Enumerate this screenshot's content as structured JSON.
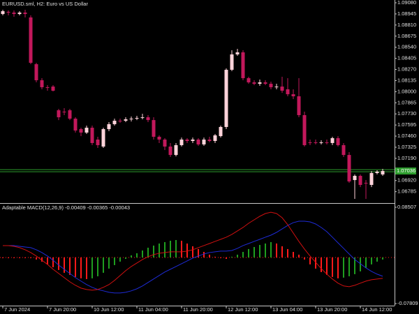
{
  "chart_data": [
    {
      "type": "candlestick",
      "title": "EURUSD.sml, H2:  Euro vs US Dollar",
      "categories": [
        "7 Jun 2024",
        null,
        null,
        null,
        null,
        null,
        null,
        null,
        "7 Jun 20:00",
        null,
        null,
        null,
        null,
        null,
        null,
        null,
        "10 Jun 12:00",
        null,
        null,
        null,
        null,
        null,
        null,
        null,
        "11 Jun 04:00",
        null,
        null,
        null,
        null,
        null,
        null,
        null,
        "11 Jun 20:00",
        null,
        null,
        null,
        null,
        null,
        null,
        null,
        "12 Jun 12:00",
        null,
        null,
        null,
        null,
        null,
        null,
        null,
        "13 Jun 04:00",
        null,
        null,
        null,
        null,
        null,
        null,
        null,
        "13 Jun 20:00",
        null,
        null,
        null,
        null,
        null,
        null,
        null,
        "14 Jun 12:00",
        null,
        null,
        null,
        null
      ],
      "open": [
        1.08944,
        1.0897,
        1.08961,
        1.08944,
        1.08961,
        1.08902,
        1.08334,
        1.08139,
        1.08054,
        1.08062,
        1.07774,
        1.07757,
        1.07774,
        1.07672,
        1.07545,
        1.07503,
        1.07562,
        1.07418,
        1.07333,
        1.07545,
        1.07605,
        1.07647,
        1.07647,
        1.07664,
        1.07672,
        1.07681,
        1.07689,
        1.07655,
        1.07452,
        1.07418,
        1.07333,
        1.07231,
        1.0735,
        1.07418,
        1.07401,
        1.07418,
        1.07359,
        1.07418,
        1.07401,
        1.0746,
        1.07571,
        1.08266,
        1.08453,
        1.08478,
        1.08164,
        1.08113,
        1.08096,
        1.08113,
        1.08096,
        1.08054,
        1.08062,
        1.08029,
        1.07969,
        1.07944,
        1.07715,
        1.07384,
        1.07384,
        1.07376,
        1.07384,
        1.07376,
        1.07435,
        1.0735,
        1.07231,
        1.06926,
        1.06977,
        1.06892,
        1.06867,
        1.07011,
        1.06994
      ],
      "high": [
        1.08995,
        1.08987,
        1.08987,
        1.08978,
        1.08995,
        1.08927,
        1.08351,
        1.08164,
        1.08079,
        1.08079,
        1.07791,
        1.078,
        1.07791,
        1.07689,
        1.07562,
        1.07588,
        1.07588,
        1.07452,
        1.07562,
        1.0763,
        1.07672,
        1.07672,
        1.07689,
        1.07698,
        1.07706,
        1.07732,
        1.07715,
        1.07689,
        1.07469,
        1.07435,
        1.07376,
        1.07376,
        1.07443,
        1.07435,
        1.07443,
        1.07435,
        1.07443,
        1.07452,
        1.07486,
        1.07588,
        1.08283,
        1.08503,
        1.0852,
        1.08503,
        1.08181,
        1.08139,
        1.08147,
        1.08139,
        1.08122,
        1.08096,
        1.08181,
        1.08164,
        1.08029,
        1.08164,
        1.07757,
        1.07418,
        1.07418,
        1.0741,
        1.07418,
        1.07452,
        1.0746,
        1.07376,
        1.07265,
        1.06994,
        1.06994,
        1.06926,
        1.07036,
        1.07045,
        1.07062
      ],
      "low": [
        1.08927,
        1.08927,
        1.0891,
        1.08927,
        1.08902,
        1.08334,
        1.08113,
        1.08029,
        1.08012,
        1.08003,
        1.07655,
        1.07715,
        1.07655,
        1.07503,
        1.0746,
        1.07486,
        1.0735,
        1.07316,
        1.07316,
        1.0752,
        1.07588,
        1.07622,
        1.0763,
        1.07638,
        1.07655,
        1.07664,
        1.0763,
        1.07418,
        1.07376,
        1.07291,
        1.07206,
        1.07214,
        1.07333,
        1.07376,
        1.07376,
        1.07342,
        1.07342,
        1.07384,
        1.07376,
        1.07443,
        1.07545,
        1.08249,
        1.08436,
        1.08139,
        1.08096,
        1.08079,
        1.08071,
        1.08079,
        1.08029,
        1.08029,
        1.07986,
        1.07944,
        1.0791,
        1.07689,
        1.07333,
        1.0735,
        1.07359,
        1.07359,
        1.07359,
        1.0735,
        1.07333,
        1.07206,
        1.06892,
        1.06697,
        1.06841,
        1.06697,
        1.06841,
        1.06994,
        1.06977
      ],
      "close": [
        1.08978,
        1.08961,
        1.08944,
        1.08961,
        1.08944,
        1.08351,
        1.08139,
        1.08054,
        1.08054,
        1.08012,
        1.07689,
        1.07757,
        1.07672,
        1.07528,
        1.07503,
        1.07562,
        1.07376,
        1.0735,
        1.07545,
        1.07605,
        1.07647,
        1.07647,
        1.07664,
        1.07672,
        1.07681,
        1.07689,
        1.07655,
        1.07452,
        1.07418,
        1.07333,
        1.07231,
        1.0735,
        1.07418,
        1.07401,
        1.07418,
        1.07359,
        1.07418,
        1.07401,
        1.07469,
        1.07571,
        1.08266,
        1.08453,
        1.08478,
        1.08164,
        1.08113,
        1.08096,
        1.08113,
        1.08096,
        1.08054,
        1.08062,
        1.08012,
        1.07969,
        1.07944,
        1.07715,
        1.0735,
        1.07384,
        1.07376,
        1.07384,
        1.07376,
        1.07435,
        1.0735,
        1.07231,
        1.06909,
        1.06977,
        1.06867,
        1.06892,
        1.07011,
        1.07028,
        1.07036
      ],
      "up_color": "#ffd3da",
      "down_color": "#c2185b",
      "ylim": [
        1.06655,
        1.09114
      ],
      "yticks": [
        {
          "value": 1.0908,
          "label": "1.09080"
        },
        {
          "value": 1.08945,
          "label": "1.08945"
        },
        {
          "value": 1.0881,
          "label": "1.08810"
        },
        {
          "value": 1.08675,
          "label": "1.08675"
        },
        {
          "value": 1.0854,
          "label": "1.08540"
        },
        {
          "value": 1.08405,
          "label": "1.08405"
        },
        {
          "value": 1.0827,
          "label": "1.08270"
        },
        {
          "value": 1.08135,
          "label": "1.08135"
        },
        {
          "value": 1.08,
          "label": "1.08000"
        },
        {
          "value": 1.07865,
          "label": "1.07865"
        },
        {
          "value": 1.0773,
          "label": "1.07730"
        },
        {
          "value": 1.07595,
          "label": "1.07595"
        },
        {
          "value": 1.0746,
          "label": "1.07460"
        },
        {
          "value": 1.07325,
          "label": "1.07325"
        },
        {
          "value": 1.0719,
          "label": "1.07190"
        },
        {
          "value": 1.0692,
          "label": "1.06920"
        },
        {
          "value": 1.06785,
          "label": "1.06785"
        }
      ],
      "price_line": 1.07036,
      "price_line_color": "#2e9e2e"
    },
    {
      "type": "macd",
      "title": "Adaptable MACD(12,26,9) -0.00409 -0.00365 -0.00043",
      "histogram": {
        "up_color": "#1f9e1f",
        "down_color": "#ff1a1a",
        "values": [
          -0.0012,
          -0.0012,
          -0.0012,
          -0.0012,
          -0.0012,
          -0.0012,
          -0.0035,
          -0.0071,
          -0.0118,
          -0.0165,
          -0.0212,
          -0.026,
          -0.0295,
          -0.033,
          -0.0354,
          -0.0366,
          -0.0354,
          -0.0319,
          -0.026,
          -0.0189,
          -0.013,
          -0.0071,
          -0.0024,
          0.0035,
          0.0071,
          0.0118,
          0.0165,
          0.0201,
          0.0236,
          0.026,
          0.0283,
          0.0295,
          0.0283,
          0.0236,
          0.0189,
          0.0142,
          0.0094,
          0.0047,
          0.0012,
          -0.0012,
          -0.0024,
          0.0012,
          0.0047,
          0.0094,
          0.0142,
          0.0177,
          0.0212,
          0.0236,
          0.026,
          0.0236,
          0.0189,
          0.0142,
          0.0094,
          0.0047,
          -0.0035,
          -0.0118,
          -0.0189,
          -0.0248,
          -0.0295,
          -0.033,
          -0.0354,
          -0.0342,
          -0.0319,
          -0.0283,
          -0.0236,
          -0.0177,
          -0.0118,
          -0.0071,
          -0.0035
        ]
      },
      "series": [
        {
          "color": "#1e2bd6",
          "values": [
            0.0201,
            0.0201,
            0.0201,
            0.0189,
            0.0177,
            0.0166,
            0.013,
            0.0083,
            0.0024,
            -0.0047,
            -0.0129,
            -0.02,
            -0.0271,
            -0.0342,
            -0.0401,
            -0.046,
            -0.0507,
            -0.0543,
            -0.0566,
            -0.059,
            -0.0602,
            -0.0602,
            -0.059,
            -0.0566,
            -0.0531,
            -0.0483,
            -0.0424,
            -0.0365,
            -0.0306,
            -0.0247,
            -0.02,
            -0.0153,
            -0.0106,
            -0.0059,
            -0.0011,
            0.0024,
            0.0059,
            0.0083,
            0.0095,
            0.0107,
            0.0107,
            0.0118,
            0.0154,
            0.0201,
            0.0236,
            0.0272,
            0.0307,
            0.0343,
            0.0378,
            0.0425,
            0.0484,
            0.0543,
            0.059,
            0.0614,
            0.0614,
            0.0602,
            0.0567,
            0.0508,
            0.0437,
            0.0343,
            0.0248,
            0.0154,
            0.0059,
            -0.0035,
            -0.0106,
            -0.0177,
            -0.0236,
            -0.0283,
            -0.0318
          ]
        },
        {
          "color": "#d01010",
          "values": [
            0.0201,
            0.0201,
            0.0189,
            0.0166,
            0.013,
            0.0083,
            0.0024,
            -0.0047,
            -0.0118,
            -0.02,
            -0.0271,
            -0.0342,
            -0.0413,
            -0.0472,
            -0.0519,
            -0.0543,
            -0.0554,
            -0.0543,
            -0.0507,
            -0.046,
            -0.0389,
            -0.0306,
            -0.0224,
            -0.0153,
            -0.0094,
            -0.0035,
            0.0012,
            0.0048,
            0.0071,
            0.0083,
            0.0095,
            0.0095,
            0.0095,
            0.0107,
            0.013,
            0.0166,
            0.0201,
            0.0236,
            0.0272,
            0.0307,
            0.0343,
            0.039,
            0.0449,
            0.0508,
            0.0579,
            0.0638,
            0.0697,
            0.0744,
            0.0767,
            0.0744,
            0.0673,
            0.0555,
            0.0413,
            0.0272,
            0.0142,
            0.0024,
            -0.0082,
            -0.0188,
            -0.0283,
            -0.0365,
            -0.0436,
            -0.0483,
            -0.0495,
            -0.0472,
            -0.0436,
            -0.0401,
            -0.0377,
            -0.0365,
            -0.0354
          ]
        }
      ],
      "ylim": [
        -0.084,
        0.09098
      ],
      "yticks": [
        0.08507,
        -0.07809
      ]
    }
  ]
}
